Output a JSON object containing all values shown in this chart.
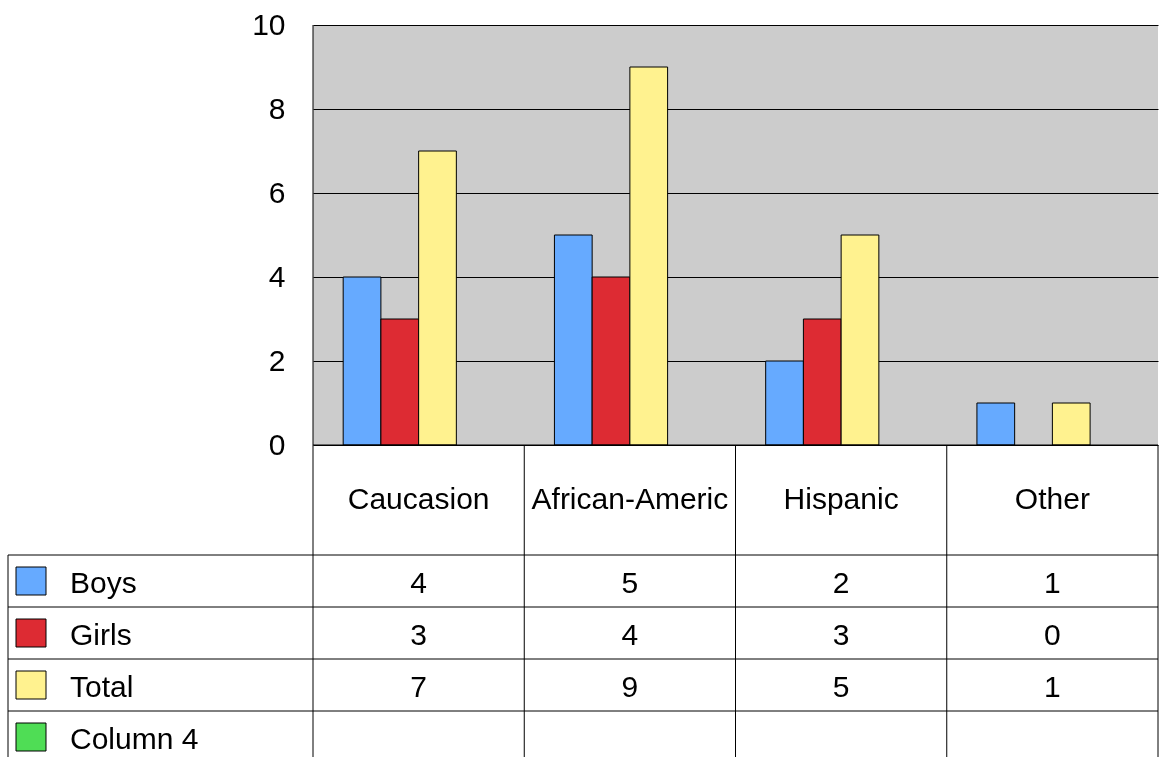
{
  "chart_data": {
    "type": "bar",
    "categories": [
      "Caucasion",
      "African-Americ",
      "Hispanic",
      "Other"
    ],
    "series": [
      {
        "name": "Boys",
        "color": "#66aaff",
        "values": [
          4,
          5,
          2,
          1
        ]
      },
      {
        "name": "Girls",
        "color": "#dd2b33",
        "values": [
          3,
          4,
          3,
          0
        ]
      },
      {
        "name": "Total",
        "color": "#fff28f",
        "values": [
          7,
          9,
          5,
          1
        ]
      },
      {
        "name": "Column 4",
        "color": "#4fdd55",
        "values": [
          null,
          null,
          null,
          null
        ]
      }
    ],
    "ylim": [
      0,
      10
    ],
    "yticks": [
      0,
      2,
      4,
      6,
      8,
      10
    ],
    "grid": "y",
    "legend": "bottom",
    "data_labels": true
  }
}
